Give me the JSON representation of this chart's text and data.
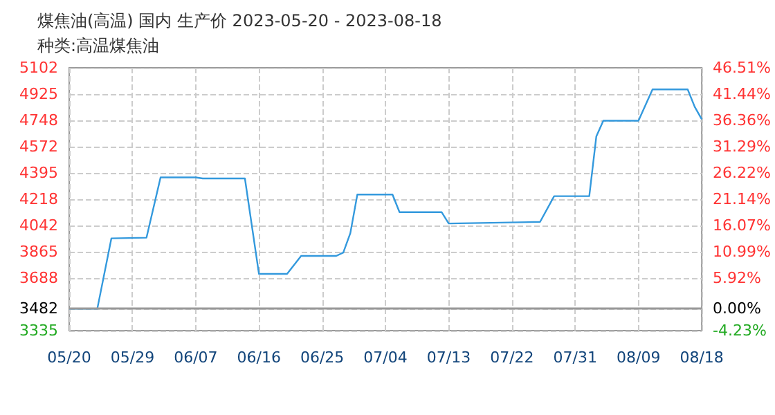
{
  "chart_data": {
    "type": "line",
    "title": "煤焦油(高温) 国内 生产价 2023-05-20 - 2023-08-18",
    "subtitle": "种类:高温煤焦油",
    "x": [
      "2023-05-20",
      "2023-05-24",
      "2023-05-26",
      "2023-05-31",
      "2023-06-02",
      "2023-06-07",
      "2023-06-08",
      "2023-06-14",
      "2023-06-16",
      "2023-06-20",
      "2023-06-22",
      "2023-06-27",
      "2023-06-28",
      "2023-06-29",
      "2023-06-30",
      "2023-07-05",
      "2023-07-06",
      "2023-07-12",
      "2023-07-13",
      "2023-07-19",
      "2023-07-26",
      "2023-07-28",
      "2023-08-02",
      "2023-08-03",
      "2023-08-04",
      "2023-08-09",
      "2023-08-11",
      "2023-08-16",
      "2023-08-17",
      "2023-08-18"
    ],
    "series": [
      {
        "color": "#3399dd",
        "values": [
          3482,
          3482,
          3955,
          3960,
          4365,
          4365,
          4358,
          4358,
          3716,
          3716,
          3837,
          3837,
          3860,
          3990,
          4250,
          4250,
          4131,
          4131,
          4055,
          4060,
          4066,
          4239,
          4239,
          4640,
          4746,
          4746,
          4957,
          4957,
          4840,
          4756
        ]
      }
    ],
    "xlim": [
      "2023-05-20",
      "2023-08-18"
    ],
    "xticks": [
      {
        "value": "2023-05-20",
        "label": "05/20"
      },
      {
        "value": "2023-05-29",
        "label": "05/29"
      },
      {
        "value": "2023-06-07",
        "label": "06/07"
      },
      {
        "value": "2023-06-16",
        "label": "06/16"
      },
      {
        "value": "2023-06-25",
        "label": "06/25"
      },
      {
        "value": "2023-07-04",
        "label": "07/04"
      },
      {
        "value": "2023-07-13",
        "label": "07/13"
      },
      {
        "value": "2023-07-22",
        "label": "07/22"
      },
      {
        "value": "2023-07-31",
        "label": "07/31"
      },
      {
        "value": "2023-08-09",
        "label": "08/09"
      },
      {
        "value": "2023-08-18",
        "label": "08/18"
      }
    ],
    "ylim": [
      3335,
      5102
    ],
    "yticks": [
      3335,
      3482,
      3688,
      3865,
      4042,
      4218,
      4395,
      4572,
      4748,
      4925,
      5102
    ],
    "y2lim": [
      -4.23,
      46.51
    ],
    "y2ticks": [
      {
        "value": -4.23,
        "label": "-4.23%"
      },
      {
        "value": 0,
        "label": "0.00%"
      },
      {
        "value": 5.92,
        "label": "5.92%"
      },
      {
        "value": 10.99,
        "label": "10.99%"
      },
      {
        "value": 16.07,
        "label": "16.07%"
      },
      {
        "value": 21.14,
        "label": "21.14%"
      },
      {
        "value": 26.22,
        "label": "26.22%"
      },
      {
        "value": 31.29,
        "label": "31.29%"
      },
      {
        "value": 36.36,
        "label": "36.36%"
      },
      {
        "value": 41.44,
        "label": "41.44%"
      },
      {
        "value": 46.51,
        "label": "46.51%"
      }
    ],
    "ref_lines": [
      {
        "axis": "y",
        "value": 3482,
        "color": "#999999"
      }
    ],
    "grid": true,
    "marker": "none",
    "line_style": "solid"
  }
}
